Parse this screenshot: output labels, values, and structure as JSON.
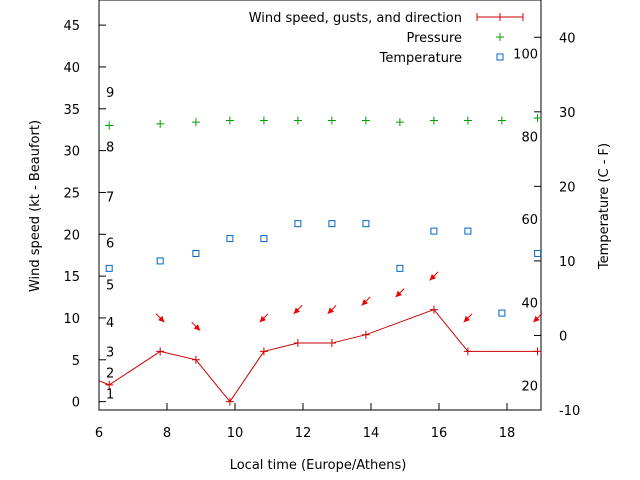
{
  "chart_data": {
    "type": "line",
    "xlabel": "Local time (Europe/Athens)",
    "ylabel": "Wind speed (kt - Beaufort)",
    "y2label": "Temperature (C - F)",
    "xlim": [
      6,
      19
    ],
    "ylim": [
      -1,
      48
    ],
    "y2lim": [
      -10,
      45
    ],
    "x_ticks": [
      6,
      8,
      10,
      12,
      14,
      16,
      18
    ],
    "y_ticks": [
      0,
      5,
      10,
      15,
      20,
      25,
      30,
      35,
      40,
      45
    ],
    "y2_ticks": [
      -10,
      0,
      10,
      20,
      30,
      40
    ],
    "beaufort_labels": [
      {
        "label": "1",
        "kt": 1
      },
      {
        "label": "2",
        "kt": 3.5
      },
      {
        "label": "3",
        "kt": 6
      },
      {
        "label": "4",
        "kt": 9.5
      },
      {
        "label": "5",
        "kt": 14
      },
      {
        "label": "6",
        "kt": 19
      },
      {
        "label": "7",
        "kt": 24.5
      },
      {
        "label": "8",
        "kt": 30.5
      },
      {
        "label": "9",
        "kt": 37
      }
    ],
    "fahrenheit_labels": [
      {
        "label": "20",
        "celsius": -6.7
      },
      {
        "label": "40",
        "celsius": 4.4
      },
      {
        "label": "60",
        "celsius": 15.6
      },
      {
        "label": "80",
        "celsius": 26.7
      },
      {
        "label": "100",
        "celsius": 37.8
      }
    ],
    "legend_position": "top-right",
    "colors": {
      "wind": "#cc0000",
      "pressure": "#00a000",
      "temperature": "#0066cc",
      "arrows": "#ee0000"
    },
    "series": [
      {
        "name": "Wind speed, gusts, and direction",
        "axis": "left",
        "style": "line-points",
        "x": [
          5.8,
          6.3,
          7.8,
          8.85,
          9.85,
          10.85,
          11.85,
          12.85,
          13.85,
          15.85,
          16.85,
          18.9
        ],
        "y": [
          2.5,
          2,
          6,
          5,
          0,
          6,
          7,
          7,
          8,
          11,
          6,
          6
        ]
      },
      {
        "name": "Pressure",
        "axis": "left",
        "style": "plus",
        "x": [
          6.3,
          7.8,
          8.85,
          9.85,
          10.85,
          11.85,
          12.85,
          13.85,
          14.85,
          15.85,
          16.85,
          17.85,
          18.9
        ],
        "y": [
          33,
          33.2,
          33.4,
          33.6,
          33.6,
          33.6,
          33.6,
          33.6,
          33.4,
          33.6,
          33.6,
          33.6,
          33.9
        ]
      },
      {
        "name": "Temperature",
        "axis": "right",
        "style": "square",
        "x": [
          6.3,
          7.8,
          8.85,
          9.85,
          10.85,
          11.85,
          12.85,
          13.85,
          14.85,
          15.85,
          16.85,
          17.85,
          18.9
        ],
        "y": [
          9,
          10,
          11,
          13,
          13,
          15,
          15,
          15,
          9,
          14,
          14,
          3,
          11
        ]
      }
    ],
    "wind_direction_arrows": [
      {
        "x": 7.8,
        "kt": 10,
        "dir_deg": 45
      },
      {
        "x": 8.85,
        "kt": 9,
        "dir_deg": 45
      },
      {
        "x": 10.85,
        "kt": 10,
        "dir_deg": 135
      },
      {
        "x": 11.85,
        "kt": 11,
        "dir_deg": 135
      },
      {
        "x": 12.85,
        "kt": 11,
        "dir_deg": 135
      },
      {
        "x": 13.85,
        "kt": 12,
        "dir_deg": 135
      },
      {
        "x": 14.85,
        "kt": 13,
        "dir_deg": 135
      },
      {
        "x": 15.85,
        "kt": 15,
        "dir_deg": 135
      },
      {
        "x": 16.85,
        "kt": 10,
        "dir_deg": 135
      },
      {
        "x": 18.9,
        "kt": 10,
        "dir_deg": 135
      }
    ]
  }
}
